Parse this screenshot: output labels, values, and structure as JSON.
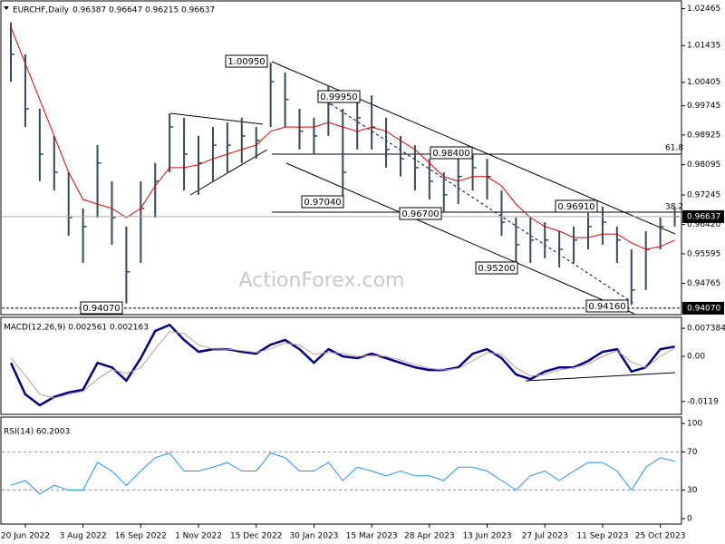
{
  "chart_data": [
    {
      "type": "ohlc",
      "title": "EURCHF,Daily",
      "quote": [
        "0.96387",
        "0.96647",
        "0.96215",
        "0.96637"
      ],
      "watermark": "ActionForex.com",
      "categories": [
        null,
        "20 Jun 2022",
        null,
        null,
        null,
        "3 Aug 2022",
        null,
        null,
        null,
        "16 Sep 2022",
        null,
        null,
        null,
        "1 Nov 2022",
        null,
        null,
        null,
        "15 Dec 2022",
        null,
        null,
        null,
        "30 Jan 2023",
        null,
        null,
        null,
        "15 Mar 2023",
        null,
        null,
        null,
        "28 Apr 2023",
        null,
        null,
        null,
        "13 Jun 2023",
        null,
        null,
        null,
        "27 Jul 2023",
        null,
        null,
        null,
        "11 Sep 2023",
        null,
        null,
        null,
        "25 Oct 2023",
        null
      ],
      "color": "#34495e",
      "high": [
        1.0208,
        1.0119,
        0.9966,
        0.989,
        0.9788,
        0.9687,
        0.9864,
        0.9763,
        0.9636,
        0.9763,
        0.9814,
        0.9953,
        0.9941,
        0.989,
        0.9915,
        0.9928,
        0.9941,
        0.9915,
        1.0095,
        1.0068,
        0.9966,
        0.9941,
        1.003,
        0.9966,
        0.9992,
        1.0004,
        0.9941,
        0.989,
        0.9864,
        0.9826,
        0.9788,
        0.9826,
        0.9839,
        0.9826,
        0.9737,
        0.9661,
        0.9661,
        0.9648,
        0.9623,
        0.9636,
        0.9674,
        0.9692,
        0.9636,
        0.9572,
        0.9623,
        0.9661,
        0.9692
      ],
      "low": [
        1.0042,
        0.9915,
        0.9763,
        0.9737,
        0.961,
        0.9534,
        0.9661,
        0.9585,
        0.942,
        0.9534,
        0.9661,
        0.9788,
        0.9737,
        0.9725,
        0.9763,
        0.9788,
        0.9814,
        0.9826,
        0.9915,
        0.9915,
        0.9852,
        0.9839,
        0.989,
        0.9704,
        0.9852,
        0.9852,
        0.9801,
        0.9776,
        0.9737,
        0.9712,
        0.9674,
        0.9699,
        0.9737,
        0.9712,
        0.961,
        0.9521,
        0.9534,
        0.9547,
        0.9521,
        0.9534,
        0.9572,
        0.9585,
        0.9534,
        0.9416,
        0.9458,
        0.9572,
        0.9636
      ],
      "close": [
        1.0119,
        0.9966,
        0.9839,
        0.9788,
        0.9661,
        0.9636,
        0.9814,
        0.9661,
        0.9509,
        0.9687,
        0.9763,
        0.9915,
        0.9839,
        0.9814,
        0.9864,
        0.9864,
        0.989,
        0.9877,
        1.0042,
        0.9992,
        0.9903,
        0.989,
        0.9979,
        0.9788,
        0.9941,
        0.9915,
        0.9852,
        0.9826,
        0.9801,
        0.9763,
        0.9725,
        0.9776,
        0.9801,
        0.9776,
        0.9648,
        0.9585,
        0.9598,
        0.9598,
        0.9572,
        0.9598,
        0.9636,
        0.9648,
        0.9598,
        0.9458,
        0.9572,
        0.9636,
        0.96637
      ],
      "ma": {
        "color": "#e00000",
        "values": [
          1.0195,
          1.0093,
          0.9992,
          0.989,
          0.9788,
          0.9712,
          0.9699,
          0.9687,
          0.9661,
          0.9687,
          0.975,
          0.9801,
          0.9801,
          0.9809,
          0.9826,
          0.9839,
          0.9852,
          0.9864,
          0.9903,
          0.9915,
          0.9915,
          0.9915,
          0.9928,
          0.9915,
          0.9903,
          0.9915,
          0.9903,
          0.9877,
          0.9852,
          0.9814,
          0.9776,
          0.9763,
          0.9776,
          0.9776,
          0.975,
          0.9699,
          0.9661,
          0.9636,
          0.9623,
          0.9605,
          0.9605,
          0.9615,
          0.9615,
          0.959,
          0.9572,
          0.958,
          0.9598
        ]
      },
      "ylim": [
        0.9389,
        1.0266
      ],
      "yticks": [
        {
          "value": 1.02465,
          "label": "1.02465"
        },
        {
          "value": 1.01435,
          "label": "1.01435"
        },
        {
          "value": 1.00405,
          "label": "1.00405"
        },
        {
          "value": 0.99745,
          "label": "0.99745"
        },
        {
          "value": 0.98925,
          "label": "0.98925"
        },
        {
          "value": 0.98095,
          "label": "0.98095"
        },
        {
          "value": 0.97245,
          "label": "0.97245"
        },
        {
          "value": 0.9642,
          "label": "0.96420"
        },
        {
          "value": 0.95595,
          "label": "0.95595"
        },
        {
          "value": 0.94765,
          "label": "0.94765"
        }
      ],
      "last_price": {
        "value": 0.96637,
        "label": "0.96637"
      },
      "support_level": {
        "value": 0.9407,
        "label": "0.94070"
      },
      "annotations": [
        "1.00950",
        "0.99950",
        "0.98400",
        "0.97040",
        "0.96700",
        "0.96910",
        "0.95200",
        "0.94160",
        "0.94070"
      ],
      "fib_labels": [
        61.8,
        38.2
      ]
    },
    {
      "type": "line",
      "title": "MACD(12,26,9) 0.002561 0.002163",
      "ylim": [
        -0.0148,
        0.0098
      ],
      "yticks": [
        0.007384,
        {
          "value": 0,
          "label": "0.00"
        },
        -0.0119
      ],
      "series": [
        {
          "color": "#00008b",
          "width": 2.5,
          "values": [
            -0.0017,
            -0.01,
            -0.0129,
            -0.0107,
            -0.0095,
            -0.0088,
            -0.0017,
            -0.0029,
            -0.0064,
            -0.0005,
            0.0067,
            0.0083,
            0.0043,
            0.0012,
            0.0019,
            0.0019,
            0.0012,
            0.0007,
            0.0031,
            0.0043,
            0.0019,
            -0.0017,
            0.0019,
            0,
            -0.0005,
            0.0007,
            -0.0005,
            -0.0017,
            -0.0029,
            -0.0036,
            -0.0036,
            -0.0029,
            0.0007,
            0.0019,
            -0.0005,
            -0.0048,
            -0.006,
            -0.004,
            -0.0029,
            -0.0029,
            -0.0012,
            0.0012,
            0.0019,
            -0.004,
            -0.0029,
            0.0019,
            0.002561
          ]
        },
        {
          "color": "#c49a9a",
          "width": 1,
          "values": [
            -0.0005,
            -0.005,
            -0.01,
            -0.011,
            -0.01,
            -0.0092,
            -0.006,
            -0.0035,
            -0.0045,
            -0.003,
            0.002,
            0.0065,
            0.006,
            0.003,
            0.002,
            0.0019,
            0.0015,
            0.001,
            0.002,
            0.0035,
            0.003,
            0.0005,
            0.001,
            0.0008,
            0,
            0.0002,
            0,
            -0.001,
            -0.0022,
            -0.0032,
            -0.0036,
            -0.0032,
            -0.0012,
            0.001,
            0.0005,
            -0.003,
            -0.0052,
            -0.0048,
            -0.0036,
            -0.003,
            -0.002,
            0,
            0.0015,
            -0.0015,
            -0.003,
            0,
            0.002163
          ]
        }
      ]
    },
    {
      "type": "line",
      "title": "RSI(14) 60.2003",
      "ylim": [
        0,
        100
      ],
      "yticks": [
        100,
        70,
        30,
        0
      ],
      "levels": [
        70,
        30
      ],
      "series": [
        {
          "color": "#1e90ff",
          "width": 1,
          "values": [
            35,
            40,
            26,
            35,
            30,
            30,
            59,
            50,
            35,
            50,
            64,
            69,
            50,
            50,
            54,
            59,
            50,
            50,
            69,
            64,
            50,
            50,
            59,
            40,
            54,
            50,
            45,
            50,
            45,
            45,
            40,
            54,
            54,
            50,
            40,
            30,
            45,
            50,
            40,
            50,
            59,
            59,
            50,
            30,
            54,
            64,
            60.2003
          ]
        }
      ]
    }
  ]
}
